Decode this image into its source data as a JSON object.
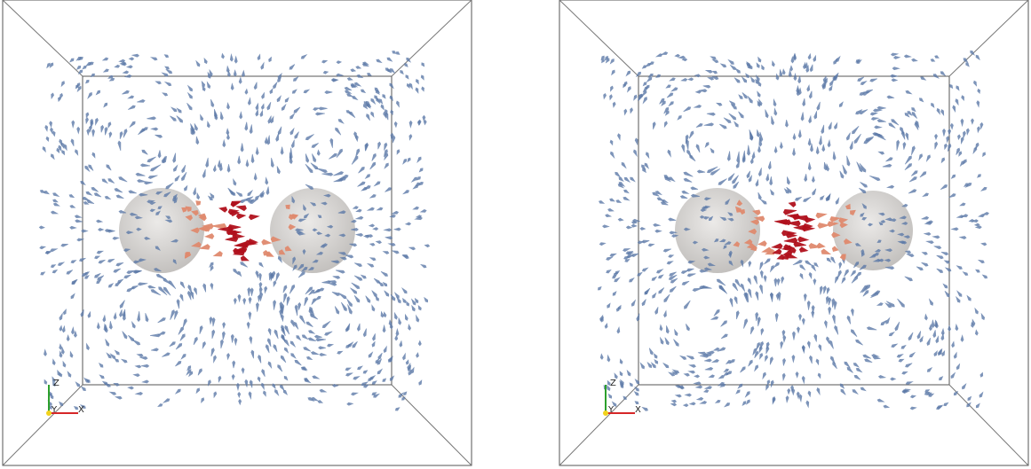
{
  "views": [
    {
      "axes": {
        "z": "Z",
        "y": "Y",
        "x": "X"
      }
    },
    {
      "axes": {
        "z": "Z",
        "y": "Y",
        "x": "X"
      }
    }
  ]
}
